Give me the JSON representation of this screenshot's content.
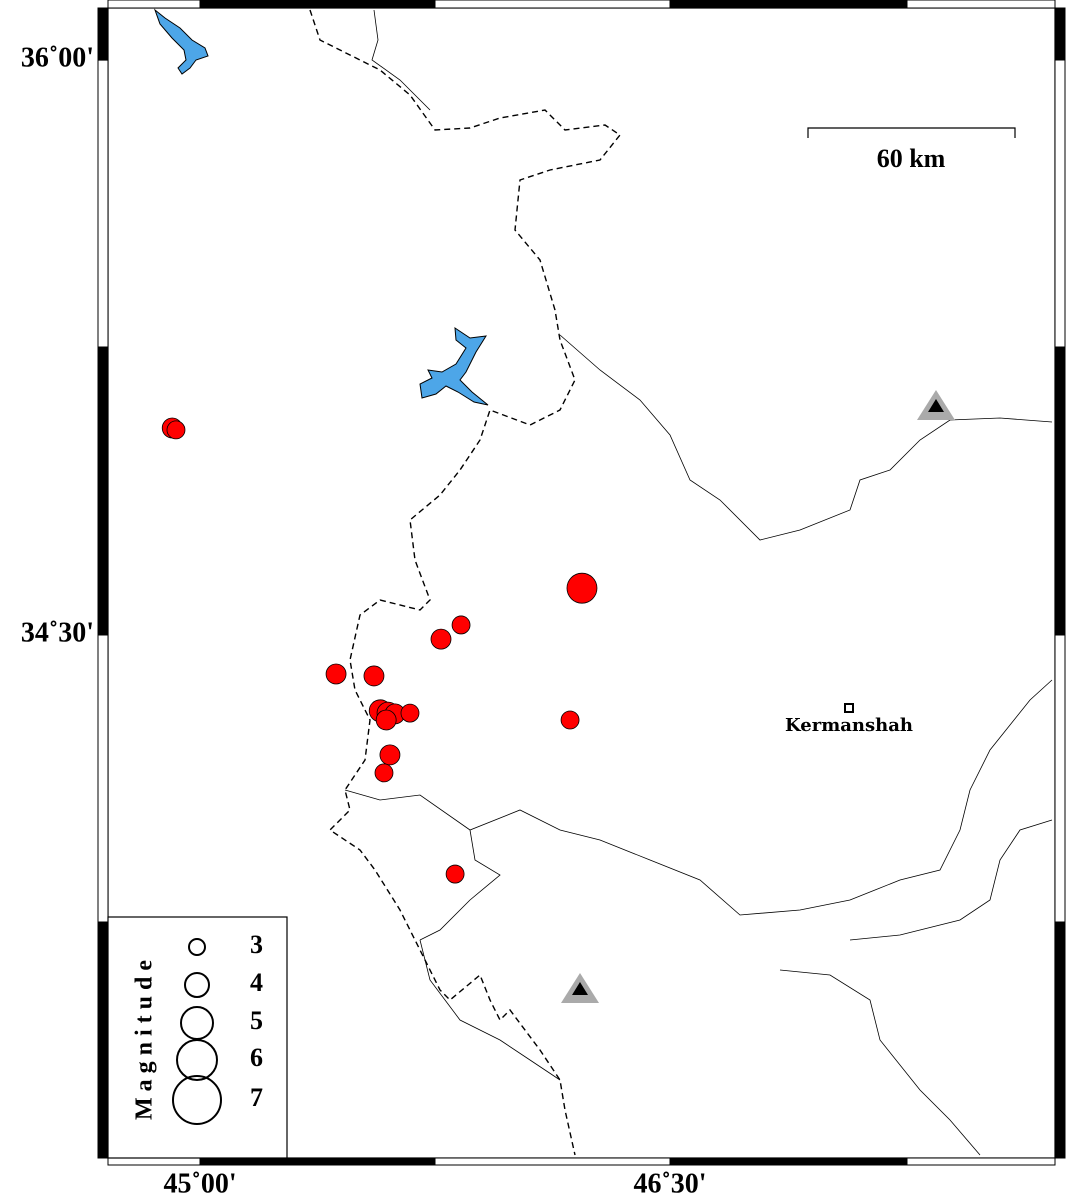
{
  "map": {
    "xlim": [
      44.706,
      47.729
    ],
    "ylim": [
      33.135,
      36.136
    ],
    "xticks": [
      {
        "value": 45,
        "label": "45˚00'"
      },
      {
        "value": 46.5,
        "label": "46˚30'"
      }
    ],
    "yticks": [
      {
        "value": 36,
        "label": "36˚00'"
      },
      {
        "value": 34.5,
        "label": "34˚30'"
      }
    ],
    "scale_label": "60 km",
    "city": "Kermanshah",
    "event_color": "#ff0000",
    "events": {
      "lon": [
        44.911,
        44.923,
        46.219,
        45.833,
        45.769,
        45.434,
        45.555,
        45.575,
        45.6,
        45.622,
        45.67,
        45.594,
        45.606,
        45.587,
        46.181,
        45.814
      ],
      "lat": [
        35.04,
        35.035,
        34.622,
        34.526,
        34.489,
        34.398,
        34.393,
        34.302,
        34.296,
        34.294,
        34.296,
        34.278,
        34.187,
        34.14,
        34.278,
        33.876
      ],
      "mag": [
        3.5,
        3.25,
        4.75,
        3.25,
        3.5,
        3.5,
        3.5,
        3.75,
        3.75,
        3.5,
        3.25,
        3.5,
        3.5,
        3.25,
        3.25,
        3.25
      ]
    },
    "legend": {
      "title": "Magnitude",
      "magnitudes": [
        3,
        4,
        5,
        6,
        7
      ]
    }
  }
}
